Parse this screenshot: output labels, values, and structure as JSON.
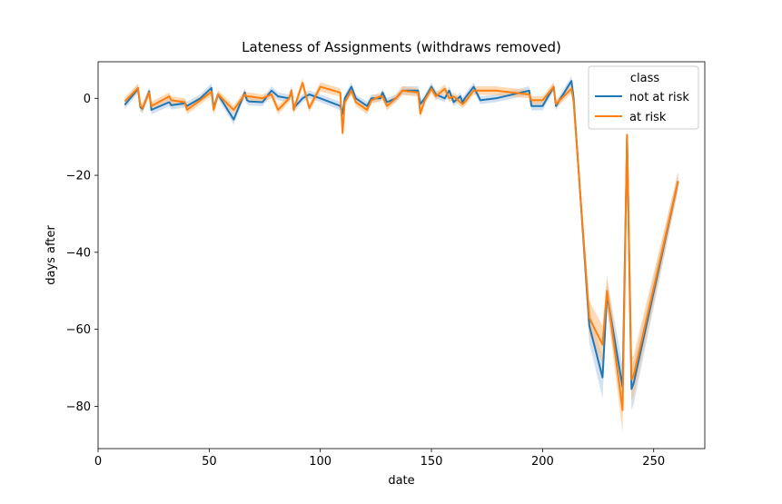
{
  "chart_data": {
    "type": "line",
    "title": "Lateness of Assignments (withdraws removed)",
    "xlabel": "date",
    "ylabel": "days after",
    "xlim": [
      0,
      273
    ],
    "ylim": [
      -91,
      9.5
    ],
    "x_ticks": [
      0,
      50,
      100,
      150,
      200,
      250
    ],
    "y_ticks": [
      0,
      -20,
      -40,
      -60,
      -80
    ],
    "x_tick_labels": [
      "0",
      "50",
      "100",
      "150",
      "200",
      "250"
    ],
    "y_tick_labels": [
      "0",
      "−20",
      "−40",
      "−60",
      "−80"
    ],
    "grid": false,
    "legend": {
      "title": "class",
      "placement": "top-right",
      "entries": [
        "not at risk",
        "at risk"
      ]
    },
    "colors": {
      "not_at_risk": "#1f77b4",
      "at_risk": "#ff7f0e",
      "band_not_at_risk": "#aec7e8",
      "band_at_risk": "#ffbb78"
    },
    "series": [
      {
        "name": "not at risk",
        "x": [
          12,
          18,
          19,
          20,
          23,
          24,
          32,
          33,
          39,
          40,
          46,
          51,
          52,
          54,
          61,
          66,
          67,
          68,
          74,
          78,
          81,
          86,
          87,
          88,
          92,
          95,
          100,
          109,
          110,
          111,
          114,
          116,
          121,
          123,
          127,
          128,
          130,
          134,
          137,
          144,
          145,
          147,
          150,
          152,
          156,
          158,
          160,
          163,
          164,
          165,
          169,
          172,
          179,
          194,
          195,
          200,
          205,
          206,
          213,
          214,
          221,
          227,
          229,
          236,
          238,
          240,
          241,
          261
        ],
        "y": [
          -1.7,
          2.5,
          -2.3,
          -2.7,
          1.8,
          -3.0,
          -1.0,
          -1.8,
          -1.3,
          -2.0,
          0.0,
          2.7,
          -2.5,
          1.0,
          -5.5,
          1.5,
          -0.5,
          -0.8,
          -1.0,
          2.0,
          0.5,
          0.0,
          2.0,
          -2.5,
          0.0,
          1.0,
          0.0,
          -2.0,
          -4.0,
          0.0,
          3.0,
          0.0,
          -2.0,
          0.0,
          0.0,
          1.5,
          -1.0,
          0.0,
          2.0,
          2.0,
          -1.5,
          0.0,
          3.0,
          1.0,
          0.0,
          2.0,
          -1.0,
          0.5,
          -1.0,
          0.0,
          3.0,
          -0.5,
          0.0,
          2.0,
          -2.0,
          -2.0,
          3.0,
          -2.0,
          4.5,
          0.0,
          -59.0,
          -72.5,
          -51.0,
          -75.0,
          -10.0,
          -75.5,
          -74.0,
          -21.5
        ]
      },
      {
        "name": "at risk",
        "x": [
          12,
          18,
          19,
          20,
          23,
          24,
          32,
          33,
          39,
          40,
          46,
          51,
          52,
          54,
          61,
          66,
          67,
          68,
          74,
          78,
          81,
          86,
          87,
          88,
          92,
          95,
          100,
          109,
          110,
          111,
          114,
          116,
          121,
          123,
          127,
          128,
          130,
          134,
          137,
          144,
          145,
          147,
          150,
          152,
          156,
          158,
          160,
          163,
          164,
          165,
          169,
          172,
          179,
          194,
          195,
          200,
          205,
          206,
          213,
          214,
          221,
          227,
          229,
          236,
          238,
          240,
          241,
          261
        ],
        "y": [
          -0.8,
          2.7,
          -2.0,
          -2.5,
          1.5,
          -2.0,
          0.5,
          -0.5,
          -1.0,
          -3.0,
          -0.5,
          1.7,
          -3.0,
          1.0,
          -3.0,
          1.0,
          0.5,
          0.5,
          0.0,
          1.0,
          -3.0,
          0.0,
          2.0,
          -3.0,
          4.0,
          -2.5,
          3.0,
          1.5,
          -9.0,
          -1.0,
          2.0,
          -1.0,
          -3.0,
          -0.5,
          0.5,
          0.5,
          -2.0,
          0.0,
          2.0,
          1.5,
          -4.0,
          -0.5,
          2.5,
          0.5,
          2.5,
          0.0,
          0.5,
          -1.0,
          -1.5,
          -1.0,
          2.0,
          2.0,
          2.0,
          1.0,
          -0.5,
          -0.5,
          3.0,
          -1.5,
          2.5,
          -1.0,
          -57.0,
          -64.0,
          -50.0,
          -81.0,
          -9.5,
          -73.0,
          -72.0,
          -21.5
        ]
      }
    ]
  }
}
